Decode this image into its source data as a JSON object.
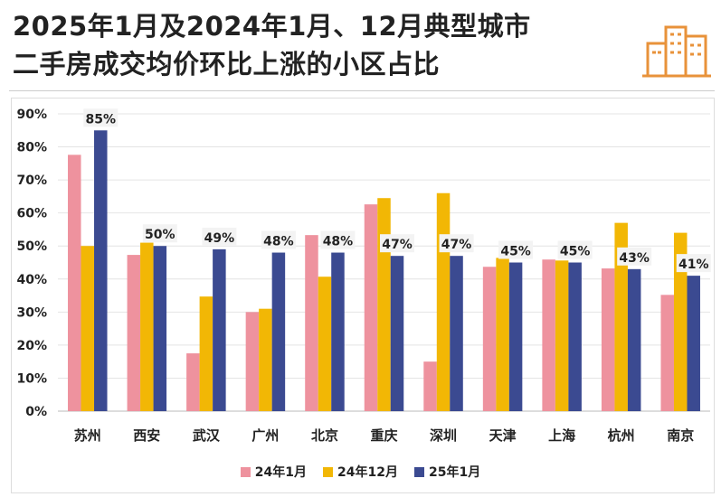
{
  "header": {
    "title_line1": "2025年1月及2024年1月、12月典型城市",
    "title_line2": "二手房成交均价环比上涨的小区占比",
    "logo_icon": "city-buildings-icon",
    "logo_color": "#E8923A"
  },
  "chart_data": {
    "type": "bar",
    "title": "2025年1月及2024年1月、12月典型城市二手房成交均价环比上涨的小区占比",
    "xlabel": "",
    "ylabel": "",
    "ylim": [
      0,
      90
    ],
    "yticks": [
      "0%",
      "10%",
      "20%",
      "30%",
      "40%",
      "50%",
      "60%",
      "70%",
      "80%",
      "90%"
    ],
    "grid": true,
    "legend_position": "bottom",
    "categories": [
      "苏州",
      "西安",
      "武汉",
      "广州",
      "北京",
      "重庆",
      "深圳",
      "天津",
      "上海",
      "杭州",
      "南京"
    ],
    "series": [
      {
        "name": "24年1月",
        "color": "#EE929E",
        "values": [
          77.6,
          47.3,
          17.5,
          30,
          53.3,
          62.6,
          15,
          43.7,
          45.9,
          43.2,
          35.2
        ]
      },
      {
        "name": "24年12月",
        "color": "#F2B705",
        "values": [
          50,
          51,
          34.7,
          31,
          40.7,
          64.5,
          66,
          46.4,
          45.6,
          57,
          54
        ]
      },
      {
        "name": "25年1月",
        "color": "#3B4A91",
        "values": [
          85,
          50,
          49,
          48,
          48,
          47,
          47,
          45,
          45,
          43,
          41
        ]
      }
    ],
    "data_labels": [
      "85%",
      "50%",
      "49%",
      "48%",
      "48%",
      "47%",
      "47%",
      "45%",
      "45%",
      "43%",
      "41%"
    ]
  }
}
